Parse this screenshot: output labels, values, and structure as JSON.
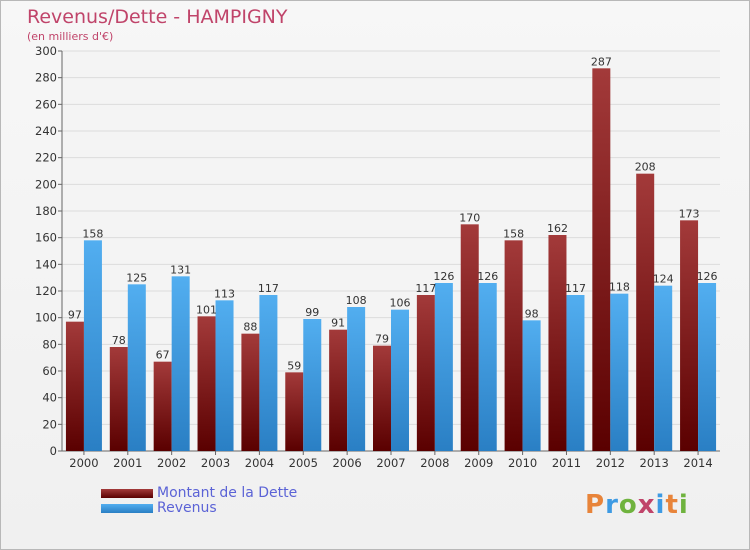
{
  "header": {
    "title": "Revenus/Dette - HAMPIGNY",
    "subtitle": "(en milliers d'€)"
  },
  "legend": {
    "items": [
      {
        "label": "Montant de la Dette",
        "color": "#7a1212"
      },
      {
        "label": "Revenus",
        "color": "#3d9ae3"
      }
    ]
  },
  "logo": {
    "letters": [
      "P",
      "r",
      "o",
      "x",
      "i",
      "t",
      "i"
    ],
    "colors": [
      "#e8843a",
      "#3d9ae3",
      "#6fb33e",
      "#c0446a",
      "#3d9ae3",
      "#e8843a",
      "#6fb33e"
    ]
  },
  "chart_data": {
    "type": "bar",
    "title": "Revenus/Dette - HAMPIGNY",
    "subtitle": "(en milliers d'€)",
    "categories": [
      "2000",
      "2001",
      "2002",
      "2003",
      "2004",
      "2005",
      "2006",
      "2007",
      "2008",
      "2009",
      "2010",
      "2011",
      "2012",
      "2013",
      "2014"
    ],
    "series": [
      {
        "name": "Montant de la Dette",
        "color": "#7a1212",
        "values": [
          97,
          78,
          67,
          101,
          88,
          59,
          91,
          79,
          117,
          170,
          158,
          162,
          287,
          208,
          173
        ]
      },
      {
        "name": "Revenus",
        "color": "#3d9ae3",
        "values": [
          158,
          125,
          131,
          113,
          117,
          99,
          108,
          106,
          126,
          126,
          98,
          117,
          118,
          124,
          126
        ]
      }
    ],
    "ylim": [
      0,
      300
    ],
    "yticks": [
      0,
      20,
      40,
      60,
      80,
      100,
      120,
      140,
      160,
      180,
      200,
      220,
      240,
      260,
      280,
      300
    ],
    "grid": true,
    "legend_position": "bottom-left"
  }
}
